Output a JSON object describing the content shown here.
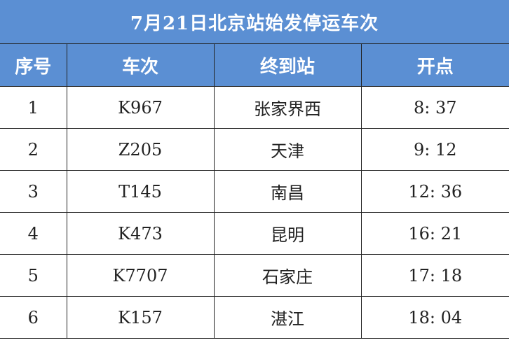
{
  "title": "7月21日北京站始发停运车次",
  "colors": {
    "header_bg": "#5b8fd3",
    "header_text": "#ffffff",
    "grid": "#222222"
  },
  "columns": [
    "序号",
    "车次",
    "终到站",
    "开点"
  ],
  "rows": [
    [
      "1",
      "K967",
      "张家界西",
      "8: 37"
    ],
    [
      "2",
      "Z205",
      "天津",
      "9: 12"
    ],
    [
      "3",
      "T145",
      "南昌",
      "12: 36"
    ],
    [
      "4",
      "K473",
      "昆明",
      "16: 21"
    ],
    [
      "5",
      "K7707",
      "石家庄",
      "17: 18"
    ],
    [
      "6",
      "K157",
      "湛江",
      "18: 04"
    ]
  ]
}
